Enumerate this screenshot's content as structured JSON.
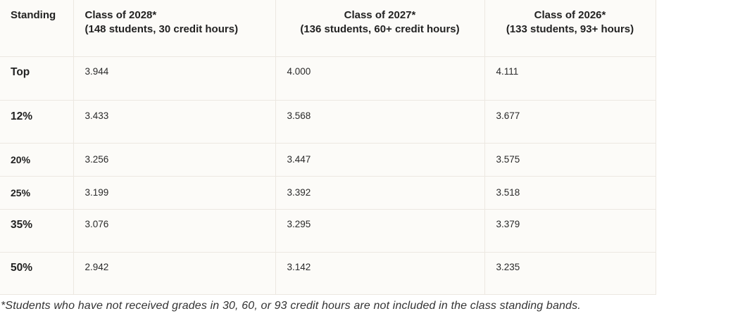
{
  "table": {
    "headers": [
      {
        "line1": "Standing",
        "line2": ""
      },
      {
        "line1": "Class of 2028*",
        "line2": "(148 students, 30 credit hours)"
      },
      {
        "line1": "Class of 2027*",
        "line2": "(136 students, 60+ credit hours)"
      },
      {
        "line1": "Class of 2026*",
        "line2": "(133 students, 93+ hours)"
      }
    ],
    "rows": [
      {
        "standing": "Top",
        "c2028": "3.944",
        "c2027": "4.000",
        "c2026": "4.111"
      },
      {
        "standing": "12%",
        "c2028": "3.433",
        "c2027": "3.568",
        "c2026": "3.677"
      },
      {
        "standing": "20%",
        "c2028": "3.256",
        "c2027": "3.447",
        "c2026": "3.575"
      },
      {
        "standing": "25%",
        "c2028": "3.199",
        "c2027": "3.392",
        "c2026": "3.518"
      },
      {
        "standing": "35%",
        "c2028": "3.076",
        "c2027": "3.295",
        "c2026": "3.379"
      },
      {
        "standing": "50%",
        "c2028": "2.942",
        "c2027": "3.142",
        "c2026": "3.235"
      }
    ]
  },
  "footnote": "*Students who have not received grades in 30, 60, or 93 credit hours are not included in the class standing bands.",
  "colors": {
    "table_background": "#fcfbf8",
    "border": "#ece8e1",
    "text": "#222222"
  }
}
